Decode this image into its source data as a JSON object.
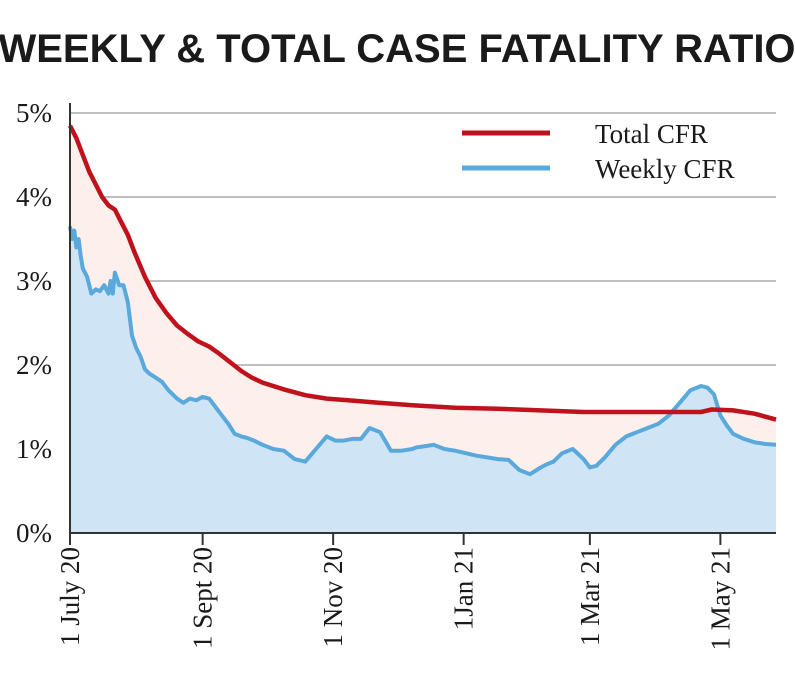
{
  "chart_data": {
    "type": "area",
    "title": "WEEKLY & TOTAL CASE FATALITY RATIO",
    "xlabel": "",
    "ylabel": "",
    "ylim": [
      0,
      5
    ],
    "y_ticks": [
      0,
      1,
      2,
      3,
      4,
      5
    ],
    "y_tick_labels": [
      "0%",
      "1%",
      "2%",
      "3%",
      "4%",
      "5%"
    ],
    "x_unit": "days since 1 July 2020",
    "xlim": [
      0,
      330
    ],
    "x_ticks": [
      0,
      62,
      123,
      184,
      243,
      304
    ],
    "x_tick_labels": [
      "1 July 20",
      "1 Sept 20",
      "1 Nov 20",
      "1Jan 21",
      "1 Mar 21",
      "1 May 21"
    ],
    "grid": true,
    "legend_position": "top-right",
    "colors": {
      "total_line": "#c0121d",
      "total_fill": "#fcefec",
      "weekly_line": "#5aa9dd",
      "weekly_fill": "#cfe4f5",
      "grid": "#aaaaaa",
      "axis": "#333333"
    },
    "series": [
      {
        "name": "Total CFR",
        "x": [
          0,
          3,
          6,
          9,
          12,
          15,
          18,
          21,
          24,
          27,
          30,
          35,
          40,
          45,
          50,
          55,
          60,
          65,
          70,
          75,
          80,
          85,
          90,
          95,
          100,
          110,
          120,
          130,
          140,
          160,
          180,
          200,
          220,
          240,
          260,
          280,
          295,
          300,
          310,
          320,
          330
        ],
        "values": [
          4.85,
          4.7,
          4.5,
          4.3,
          4.15,
          4.0,
          3.9,
          3.85,
          3.7,
          3.55,
          3.35,
          3.05,
          2.8,
          2.62,
          2.47,
          2.37,
          2.28,
          2.22,
          2.13,
          2.03,
          1.93,
          1.85,
          1.79,
          1.75,
          1.71,
          1.64,
          1.6,
          1.58,
          1.56,
          1.52,
          1.49,
          1.48,
          1.46,
          1.44,
          1.44,
          1.44,
          1.44,
          1.47,
          1.46,
          1.42,
          1.35
        ]
      },
      {
        "name": "Weekly CFR",
        "x": [
          0,
          1,
          2,
          3,
          4,
          5,
          6,
          8,
          10,
          12,
          14,
          16,
          18,
          19,
          20,
          21,
          23,
          25,
          27,
          29,
          31,
          33,
          35,
          37,
          40,
          43,
          46,
          50,
          53,
          56,
          59,
          62,
          65,
          68,
          71,
          74,
          77,
          80,
          83,
          86,
          90,
          95,
          100,
          105,
          110,
          115,
          120,
          124,
          128,
          132,
          136,
          140,
          145,
          150,
          155,
          160,
          162,
          165,
          170,
          175,
          180,
          185,
          190,
          195,
          200,
          205,
          210,
          215,
          220,
          223,
          226,
          230,
          235,
          240,
          243,
          246,
          250,
          255,
          260,
          265,
          270,
          275,
          280,
          285,
          290,
          295,
          298,
          301,
          304,
          307,
          310,
          315,
          320,
          325,
          330
        ],
        "values": [
          3.65,
          3.5,
          3.6,
          3.4,
          3.5,
          3.3,
          3.15,
          3.05,
          2.85,
          2.9,
          2.88,
          2.95,
          2.85,
          3.0,
          2.85,
          3.1,
          2.95,
          2.95,
          2.75,
          2.35,
          2.2,
          2.1,
          1.95,
          1.9,
          1.85,
          1.8,
          1.7,
          1.6,
          1.55,
          1.6,
          1.58,
          1.62,
          1.6,
          1.5,
          1.4,
          1.3,
          1.18,
          1.15,
          1.13,
          1.1,
          1.05,
          1.0,
          0.98,
          0.88,
          0.85,
          1.0,
          1.15,
          1.1,
          1.1,
          1.12,
          1.12,
          1.25,
          1.2,
          0.98,
          0.98,
          1.0,
          1.02,
          1.03,
          1.05,
          1.0,
          0.98,
          0.95,
          0.92,
          0.9,
          0.88,
          0.87,
          0.75,
          0.7,
          0.78,
          0.82,
          0.85,
          0.95,
          1.0,
          0.88,
          0.78,
          0.8,
          0.9,
          1.05,
          1.15,
          1.2,
          1.25,
          1.3,
          1.4,
          1.55,
          1.7,
          1.75,
          1.73,
          1.65,
          1.4,
          1.28,
          1.18,
          1.12,
          1.08,
          1.06,
          1.05
        ]
      }
    ]
  }
}
